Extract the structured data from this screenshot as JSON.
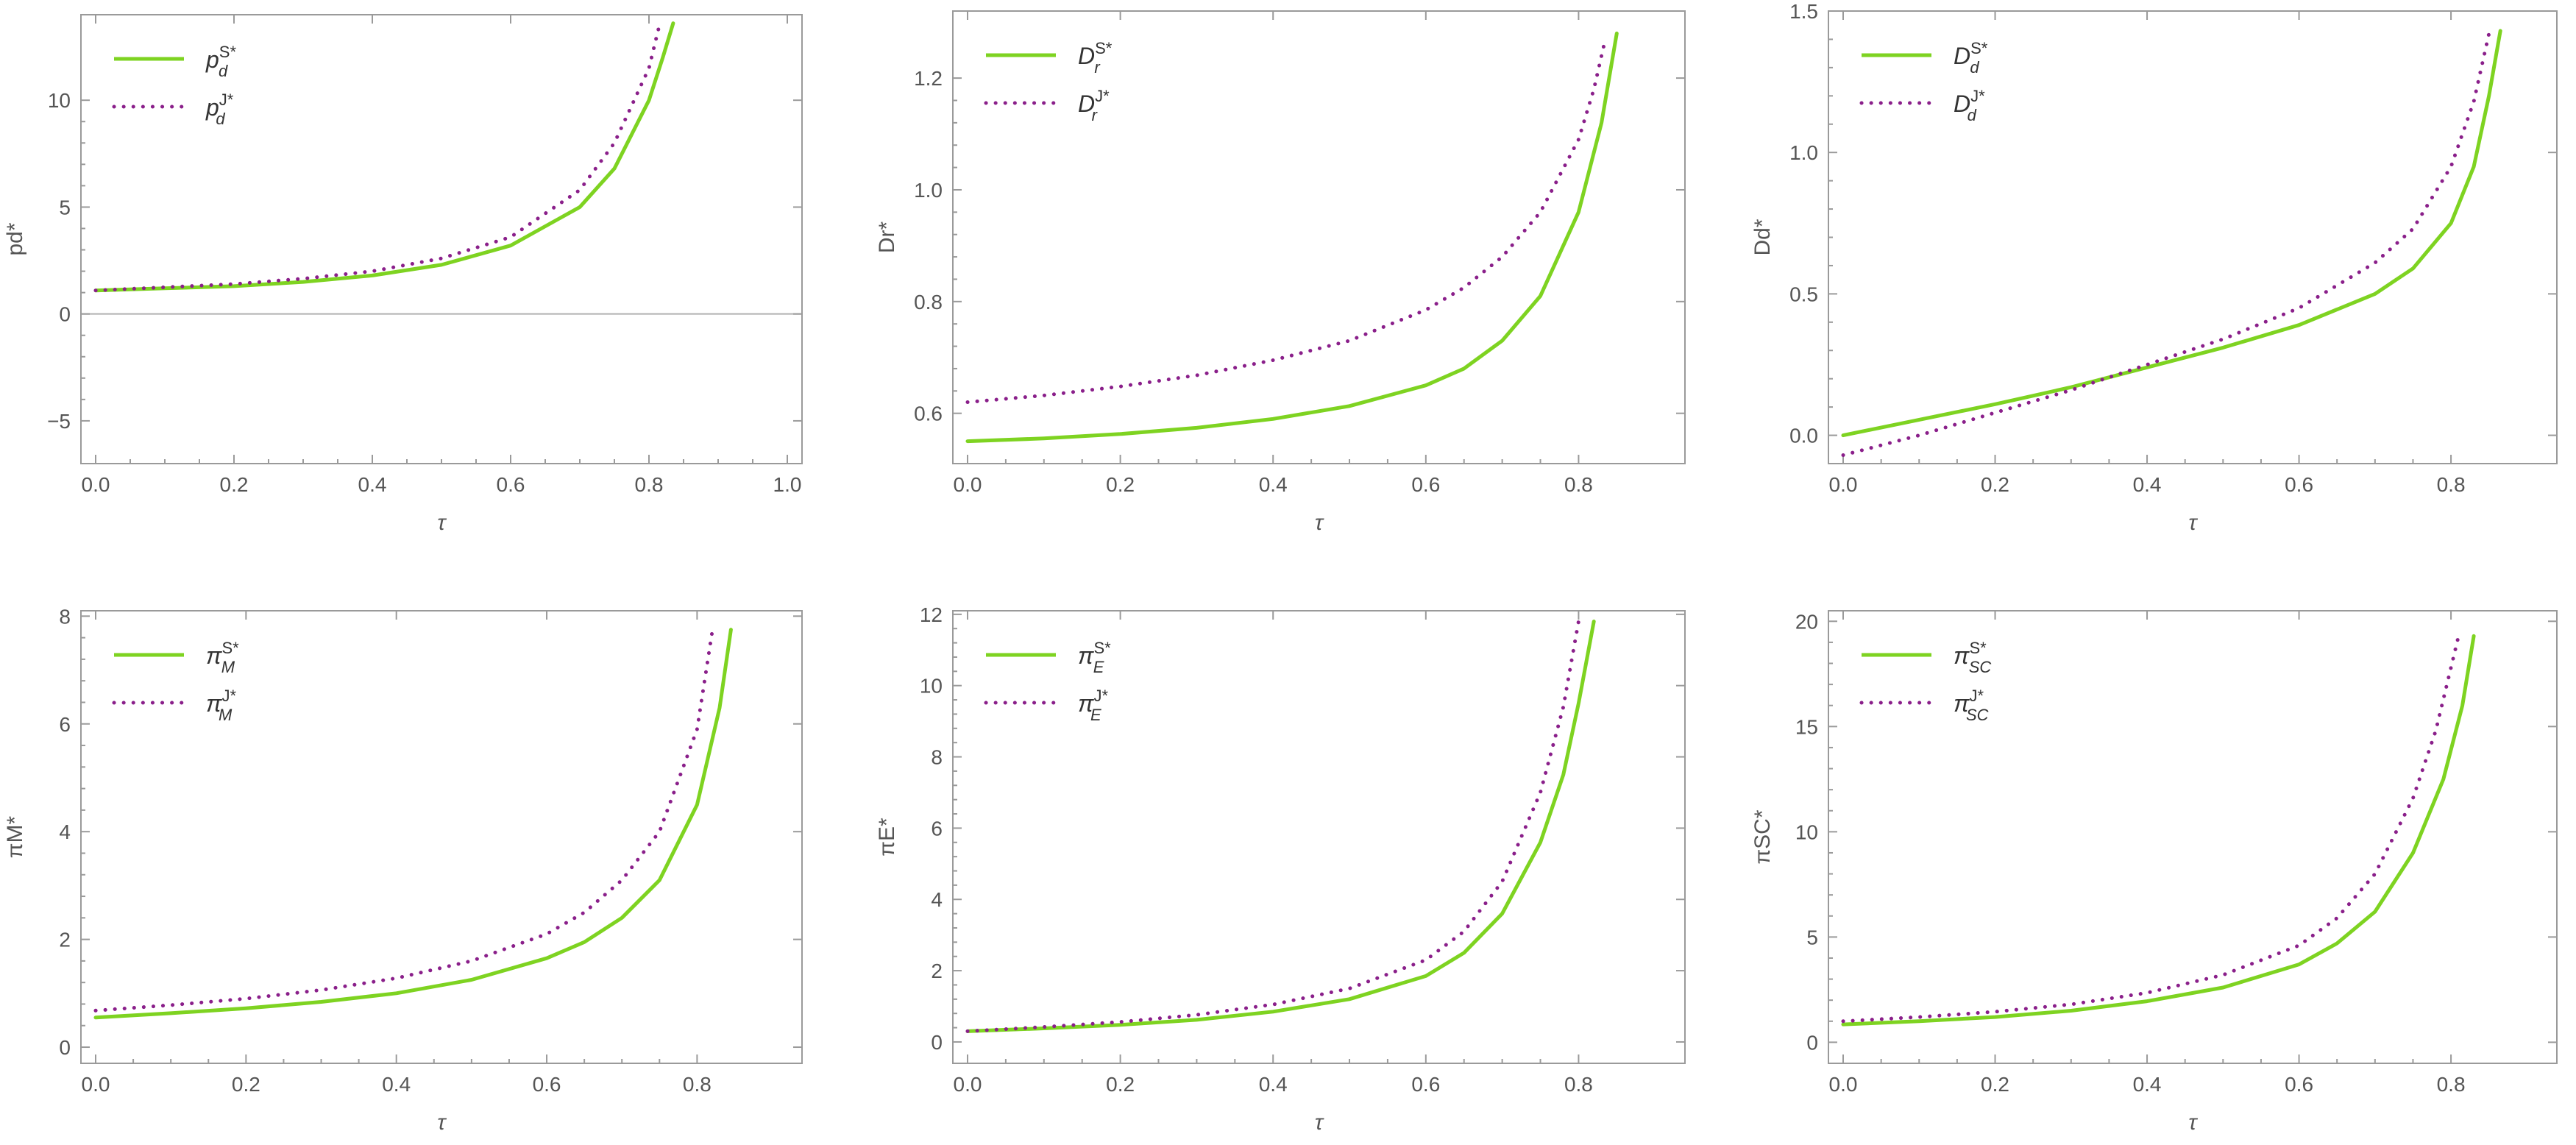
{
  "colors": {
    "solid": "#7ed321",
    "dotted": "#8a1f8a",
    "dotted_light": "#d070d0"
  },
  "chart_data": [
    {
      "type": "line",
      "xlabel": "τ",
      "ylabel": "pd*",
      "xlim": [
        0,
        1.0
      ],
      "ylim": [
        -7,
        14
      ],
      "xticks": [
        0.0,
        0.2,
        0.4,
        0.6,
        0.8,
        1.0
      ],
      "xtick_labels": [
        "0.0",
        "0.2",
        "0.4",
        "0.6",
        "0.8",
        "1.0"
      ],
      "yticks": [
        -5,
        0,
        5,
        10
      ],
      "ytick_labels": [
        "−5",
        "0",
        "5",
        "10"
      ],
      "zero_line": true,
      "legend": "top-left",
      "series": [
        {
          "name": "pdS*",
          "style": "solid",
          "color": "#7ed321",
          "x": [
            0,
            0.1,
            0.2,
            0.3,
            0.4,
            0.5,
            0.6,
            0.7,
            0.75,
            0.8,
            0.82,
            0.835
          ],
          "y": [
            1.1,
            1.2,
            1.3,
            1.5,
            1.8,
            2.3,
            3.2,
            5.0,
            6.8,
            10.0,
            12.0,
            13.6
          ]
        },
        {
          "name": "pdJ*",
          "style": "dotted",
          "color": "#8a1f8a",
          "x": [
            0,
            0.1,
            0.2,
            0.3,
            0.4,
            0.5,
            0.6,
            0.7,
            0.75,
            0.8,
            0.815
          ],
          "y": [
            1.1,
            1.25,
            1.4,
            1.65,
            2.0,
            2.6,
            3.6,
            5.8,
            8.0,
            11.5,
            13.5
          ]
        }
      ]
    },
    {
      "type": "line",
      "xlabel": "τ",
      "ylabel": "Dr*",
      "xlim": [
        0,
        0.92
      ],
      "ylim": [
        0.51,
        1.32
      ],
      "xticks": [
        0.0,
        0.2,
        0.4,
        0.6,
        0.8
      ],
      "xtick_labels": [
        "0.0",
        "0.2",
        "0.4",
        "0.6",
        "0.8"
      ],
      "yticks": [
        0.6,
        0.8,
        1.0,
        1.2
      ],
      "ytick_labels": [
        "0.6",
        "0.8",
        "1.0",
        "1.2"
      ],
      "legend": "top-left",
      "series": [
        {
          "name": "DrS*",
          "style": "solid",
          "color": "#7ed321",
          "x": [
            0,
            0.1,
            0.2,
            0.3,
            0.4,
            0.5,
            0.6,
            0.65,
            0.7,
            0.75,
            0.8,
            0.83,
            0.85
          ],
          "y": [
            0.55,
            0.555,
            0.563,
            0.574,
            0.59,
            0.613,
            0.65,
            0.68,
            0.73,
            0.81,
            0.96,
            1.12,
            1.28
          ]
        },
        {
          "name": "DrJ*",
          "style": "dotted",
          "color": "#8a1f8a",
          "x": [
            0,
            0.1,
            0.2,
            0.3,
            0.4,
            0.5,
            0.6,
            0.65,
            0.7,
            0.75,
            0.8,
            0.82,
            0.835
          ],
          "y": [
            0.62,
            0.632,
            0.648,
            0.668,
            0.695,
            0.73,
            0.785,
            0.825,
            0.88,
            0.96,
            1.09,
            1.18,
            1.27
          ]
        }
      ]
    },
    {
      "type": "line",
      "xlabel": "τ",
      "ylabel": "Dd*",
      "xlim": [
        0,
        0.92
      ],
      "ylim": [
        -0.1,
        1.5
      ],
      "xticks": [
        0.0,
        0.2,
        0.4,
        0.6,
        0.8
      ],
      "xtick_labels": [
        "0.0",
        "0.2",
        "0.4",
        "0.6",
        "0.8"
      ],
      "yticks": [
        0.0,
        0.5,
        1.0,
        1.5
      ],
      "ytick_labels": [
        "0.0",
        "0.5",
        "1.0",
        "1.5"
      ],
      "legend": "top-left",
      "series": [
        {
          "name": "DdS*",
          "style": "solid",
          "color": "#7ed321",
          "x": [
            0,
            0.1,
            0.2,
            0.3,
            0.4,
            0.5,
            0.6,
            0.7,
            0.75,
            0.8,
            0.83,
            0.85,
            0.865
          ],
          "y": [
            0.0,
            0.055,
            0.11,
            0.17,
            0.24,
            0.31,
            0.39,
            0.5,
            0.59,
            0.75,
            0.95,
            1.2,
            1.43
          ]
        },
        {
          "name": "DdJ*",
          "style": "dotted",
          "color": "#8a1f8a",
          "x": [
            0,
            0.1,
            0.2,
            0.3,
            0.4,
            0.5,
            0.6,
            0.7,
            0.75,
            0.8,
            0.83,
            0.85
          ],
          "y": [
            -0.07,
            0.0,
            0.08,
            0.16,
            0.25,
            0.34,
            0.45,
            0.61,
            0.73,
            0.95,
            1.18,
            1.42
          ]
        }
      ]
    },
    {
      "type": "line",
      "xlabel": "τ",
      "ylabel": "πM*",
      "xlim": [
        0,
        0.92
      ],
      "ylim": [
        -0.3,
        8.1
      ],
      "xticks": [
        0.0,
        0.2,
        0.4,
        0.6,
        0.8
      ],
      "xtick_labels": [
        "0.0",
        "0.2",
        "0.4",
        "0.6",
        "0.8"
      ],
      "yticks": [
        0,
        2,
        4,
        6,
        8
      ],
      "ytick_labels": [
        "0",
        "2",
        "4",
        "6",
        "8"
      ],
      "legend": "top-left",
      "series": [
        {
          "name": "πMS*",
          "style": "solid",
          "color": "#7ed321",
          "x": [
            0,
            0.1,
            0.2,
            0.3,
            0.4,
            0.5,
            0.6,
            0.65,
            0.7,
            0.75,
            0.8,
            0.83,
            0.845
          ],
          "y": [
            0.55,
            0.63,
            0.72,
            0.84,
            1.0,
            1.25,
            1.65,
            1.95,
            2.4,
            3.1,
            4.5,
            6.3,
            7.75
          ]
        },
        {
          "name": "πMJ*",
          "style": "dotted",
          "color": "#8a1f8a",
          "x": [
            0,
            0.1,
            0.2,
            0.3,
            0.4,
            0.5,
            0.6,
            0.65,
            0.7,
            0.75,
            0.8,
            0.82
          ],
          "y": [
            0.68,
            0.78,
            0.9,
            1.06,
            1.28,
            1.6,
            2.1,
            2.5,
            3.1,
            4.0,
            5.9,
            7.7
          ]
        }
      ]
    },
    {
      "type": "line",
      "xlabel": "τ",
      "ylabel": "πE*",
      "xlim": [
        0,
        0.92
      ],
      "ylim": [
        -0.6,
        12.1
      ],
      "xticks": [
        0.0,
        0.2,
        0.4,
        0.6,
        0.8
      ],
      "xtick_labels": [
        "0.0",
        "0.2",
        "0.4",
        "0.6",
        "0.8"
      ],
      "yticks": [
        0,
        2,
        4,
        6,
        8,
        10,
        12
      ],
      "ytick_labels": [
        "0",
        "2",
        "4",
        "6",
        "8",
        "10",
        "12"
      ],
      "legend": "top-left",
      "series": [
        {
          "name": "πES*",
          "style": "solid",
          "color": "#7ed321",
          "x": [
            0,
            0.1,
            0.2,
            0.3,
            0.4,
            0.5,
            0.6,
            0.65,
            0.7,
            0.75,
            0.78,
            0.8,
            0.82
          ],
          "y": [
            0.3,
            0.38,
            0.48,
            0.62,
            0.85,
            1.2,
            1.85,
            2.5,
            3.6,
            5.6,
            7.5,
            9.5,
            11.8
          ]
        },
        {
          "name": "πEJ*",
          "style": "dotted",
          "color": "#8a1f8a",
          "x": [
            0,
            0.1,
            0.2,
            0.3,
            0.4,
            0.5,
            0.6,
            0.65,
            0.7,
            0.75,
            0.78,
            0.8
          ],
          "y": [
            0.3,
            0.42,
            0.56,
            0.76,
            1.05,
            1.5,
            2.3,
            3.1,
            4.5,
            7.0,
            9.4,
            11.8
          ]
        }
      ]
    },
    {
      "type": "line",
      "xlabel": "τ",
      "ylabel": "πSC*",
      "xlim": [
        0,
        0.92
      ],
      "ylim": [
        -1,
        20.5
      ],
      "xticks": [
        0.0,
        0.2,
        0.4,
        0.6,
        0.8
      ],
      "xtick_labels": [
        "0.0",
        "0.2",
        "0.4",
        "0.6",
        "0.8"
      ],
      "yticks": [
        0,
        5,
        10,
        15,
        20
      ],
      "ytick_labels": [
        "0",
        "5",
        "10",
        "15",
        "20"
      ],
      "legend": "top-left",
      "series": [
        {
          "name": "πSCS*",
          "style": "solid",
          "color": "#7ed321",
          "x": [
            0,
            0.1,
            0.2,
            0.3,
            0.4,
            0.5,
            0.6,
            0.65,
            0.7,
            0.75,
            0.79,
            0.815,
            0.83
          ],
          "y": [
            0.85,
            1.0,
            1.2,
            1.5,
            1.95,
            2.6,
            3.7,
            4.7,
            6.2,
            9.0,
            12.5,
            16.0,
            19.3
          ]
        },
        {
          "name": "πSCJ*",
          "style": "dotted",
          "color": "#8a1f8a",
          "x": [
            0,
            0.1,
            0.2,
            0.3,
            0.4,
            0.5,
            0.6,
            0.65,
            0.7,
            0.75,
            0.78,
            0.8,
            0.81
          ],
          "y": [
            1.0,
            1.2,
            1.45,
            1.8,
            2.35,
            3.2,
            4.6,
            5.9,
            8.0,
            11.6,
            14.8,
            17.8,
            19.3
          ]
        }
      ]
    }
  ],
  "legends": [
    {
      "base": "p",
      "sub": "d",
      "sup1": "S*",
      "sup2": "J*"
    },
    {
      "base": "D",
      "sub": "r",
      "sup1": "S*",
      "sup2": "J*"
    },
    {
      "base": "D",
      "sub": "d",
      "sup1": "S*",
      "sup2": "J*"
    },
    {
      "base": "π",
      "sub": "M",
      "sup1": "S*",
      "sup2": "J*"
    },
    {
      "base": "π",
      "sub": "E",
      "sup1": "S*",
      "sup2": "J*"
    },
    {
      "base": "π",
      "sub": "SC",
      "sup1": "S*",
      "sup2": "J*"
    }
  ]
}
